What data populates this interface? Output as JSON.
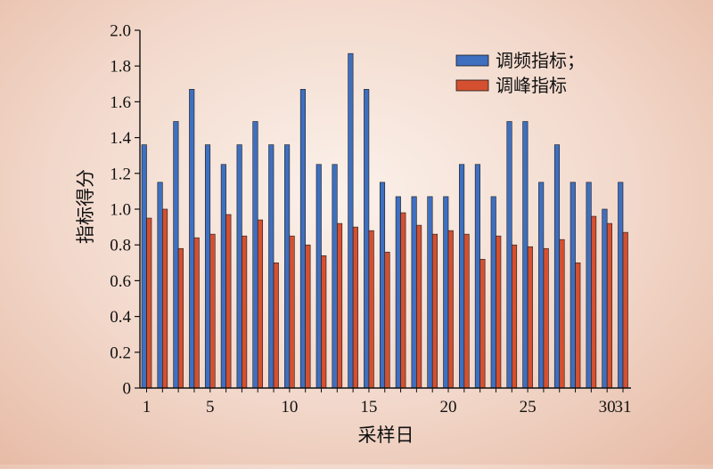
{
  "chart_data": {
    "type": "bar",
    "xlabel": "采样日",
    "ylabel": "指标得分",
    "ylim": [
      0,
      2.0
    ],
    "yticks": [
      "0",
      "0.2",
      "0.4",
      "0.6",
      "0.8",
      "1.0",
      "1.2",
      "1.4",
      "1.6",
      "1.8",
      "2.0"
    ],
    "ytick_values": [
      0,
      0.2,
      0.4,
      0.6,
      0.8,
      1.0,
      1.2,
      1.4,
      1.6,
      1.8,
      2.0
    ],
    "categories": [
      1,
      2,
      3,
      4,
      5,
      6,
      7,
      8,
      9,
      10,
      11,
      12,
      13,
      14,
      15,
      16,
      17,
      18,
      19,
      20,
      21,
      22,
      23,
      24,
      25,
      26,
      27,
      28,
      29,
      30,
      31
    ],
    "xtick_labels": [
      {
        "day": 1,
        "label": "1"
      },
      {
        "day": 5,
        "label": "5"
      },
      {
        "day": 10,
        "label": "10"
      },
      {
        "day": 15,
        "label": "15"
      },
      {
        "day": 20,
        "label": "20"
      },
      {
        "day": 25,
        "label": "25"
      },
      {
        "day": 30,
        "label": "30"
      },
      {
        "day": 31,
        "label": "31"
      }
    ],
    "legend_position": "top-right",
    "series": [
      {
        "name": "调频指标；",
        "color": "#3f6fbf",
        "values": [
          1.36,
          1.15,
          1.49,
          1.67,
          1.36,
          1.25,
          1.36,
          1.49,
          1.36,
          1.36,
          1.67,
          1.25,
          1.25,
          1.87,
          1.67,
          1.15,
          1.07,
          1.07,
          1.07,
          1.07,
          1.25,
          1.25,
          1.07,
          1.49,
          1.49,
          1.15,
          1.36,
          1.15,
          1.15,
          1.0,
          1.15
        ]
      },
      {
        "name": "调峰指标",
        "color": "#d45030",
        "values": [
          0.95,
          1.0,
          0.78,
          0.84,
          0.86,
          0.97,
          0.85,
          0.94,
          0.7,
          0.85,
          0.8,
          0.74,
          0.92,
          0.9,
          0.88,
          0.76,
          0.98,
          0.91,
          0.86,
          0.88,
          0.86,
          0.72,
          0.85,
          0.8,
          0.79,
          0.78,
          0.83,
          0.7,
          0.96,
          0.92,
          0.87
        ]
      }
    ]
  }
}
